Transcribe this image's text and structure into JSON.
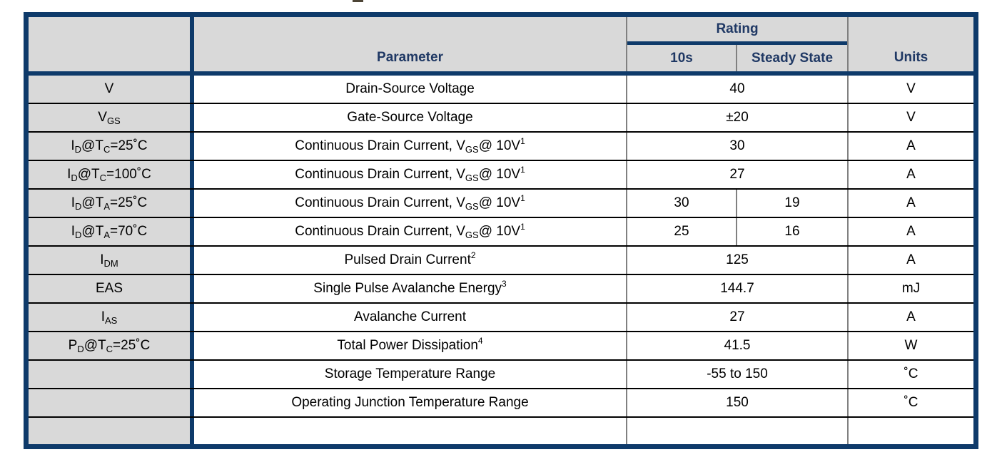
{
  "page": {
    "clipped_title_fragment": ""
  },
  "colors": {
    "navy": "#0e3a6a",
    "header-text": "#1f3864",
    "cell-gray": "#d9d9d9",
    "grid-gray": "#808080",
    "grid-black": "#000000"
  },
  "table": {
    "header": {
      "symbol": "",
      "parameter": "Parameter",
      "rating": "Rating",
      "sub_10s": "10s",
      "sub_steady": "Steady State",
      "units": "Units"
    },
    "rows": [
      {
        "symbol": [
          {
            "t": "V"
          }
        ],
        "param": [
          {
            "t": "Drain-Source Voltage"
          }
        ],
        "ratings": [
          "40"
        ],
        "units": "V"
      },
      {
        "symbol": [
          {
            "t": "V"
          },
          {
            "t": "GS",
            "s": "sub"
          }
        ],
        "param": [
          {
            "t": "Gate-Source Voltage"
          }
        ],
        "ratings": [
          "±20"
        ],
        "units": "V"
      },
      {
        "symbol": [
          {
            "t": "I"
          },
          {
            "t": "D",
            "s": "sub"
          },
          {
            "t": "@T"
          },
          {
            "t": "C",
            "s": "sub"
          },
          {
            "t": "=25˚C"
          }
        ],
        "param": [
          {
            "t": "Continuous Drain Current, V"
          },
          {
            "t": "GS",
            "s": "sub"
          },
          {
            "t": " @ 10V"
          },
          {
            "t": "1",
            "s": "sup"
          }
        ],
        "ratings": [
          "30"
        ],
        "units": "A"
      },
      {
        "symbol": [
          {
            "t": "I"
          },
          {
            "t": "D",
            "s": "sub"
          },
          {
            "t": "@T"
          },
          {
            "t": "C",
            "s": "sub"
          },
          {
            "t": "=100˚C"
          }
        ],
        "param": [
          {
            "t": "Continuous Drain Current, V"
          },
          {
            "t": "GS",
            "s": "sub"
          },
          {
            "t": " @ 10V"
          },
          {
            "t": "1",
            "s": "sup"
          }
        ],
        "ratings": [
          "27"
        ],
        "units": "A"
      },
      {
        "symbol": [
          {
            "t": "I"
          },
          {
            "t": "D",
            "s": "sub"
          },
          {
            "t": "@T"
          },
          {
            "t": "A",
            "s": "sub"
          },
          {
            "t": "=25˚C"
          }
        ],
        "param": [
          {
            "t": "Continuous Drain Current, V"
          },
          {
            "t": "GS",
            "s": "sub"
          },
          {
            "t": " @ 10V"
          },
          {
            "t": "1",
            "s": "sup"
          }
        ],
        "ratings": [
          "30",
          "19"
        ],
        "units": "A"
      },
      {
        "symbol": [
          {
            "t": "I"
          },
          {
            "t": "D",
            "s": "sub"
          },
          {
            "t": "@T"
          },
          {
            "t": "A",
            "s": "sub"
          },
          {
            "t": "=70˚C"
          }
        ],
        "param": [
          {
            "t": "Continuous Drain Current, V"
          },
          {
            "t": "GS",
            "s": "sub"
          },
          {
            "t": " @ 10V"
          },
          {
            "t": "1",
            "s": "sup"
          }
        ],
        "ratings": [
          "25",
          "16"
        ],
        "units": "A"
      },
      {
        "symbol": [
          {
            "t": "I"
          },
          {
            "t": "DM",
            "s": "sub"
          }
        ],
        "param": [
          {
            "t": "Pulsed Drain Current"
          },
          {
            "t": "2",
            "s": "sup"
          }
        ],
        "ratings": [
          "125"
        ],
        "units": "A"
      },
      {
        "symbol": [
          {
            "t": "EAS"
          }
        ],
        "param": [
          {
            "t": "Single Pulse Avalanche Energy"
          },
          {
            "t": "3",
            "s": "sup"
          }
        ],
        "ratings": [
          "144.7"
        ],
        "units": "mJ"
      },
      {
        "symbol": [
          {
            "t": "I"
          },
          {
            "t": "AS",
            "s": "sub"
          }
        ],
        "param": [
          {
            "t": "Avalanche Current"
          }
        ],
        "ratings": [
          "27"
        ],
        "units": "A"
      },
      {
        "symbol": [
          {
            "t": "P"
          },
          {
            "t": "D",
            "s": "sub"
          },
          {
            "t": "@T"
          },
          {
            "t": "C",
            "s": "sub"
          },
          {
            "t": "=25˚C"
          }
        ],
        "param": [
          {
            "t": "Total Power Dissipation"
          },
          {
            "t": "4",
            "s": "sup"
          }
        ],
        "ratings": [
          "41.5"
        ],
        "units": "W"
      },
      {
        "symbol": [],
        "param": [
          {
            "t": "Storage Temperature Range"
          }
        ],
        "ratings": [
          "-55 to 150"
        ],
        "units": "˚C"
      },
      {
        "symbol": [],
        "param": [
          {
            "t": "Operating Junction Temperature Range"
          }
        ],
        "ratings": [
          "150"
        ],
        "units": "˚C"
      },
      {
        "symbol": [],
        "param": [],
        "ratings": [
          ""
        ],
        "units": ""
      }
    ]
  }
}
